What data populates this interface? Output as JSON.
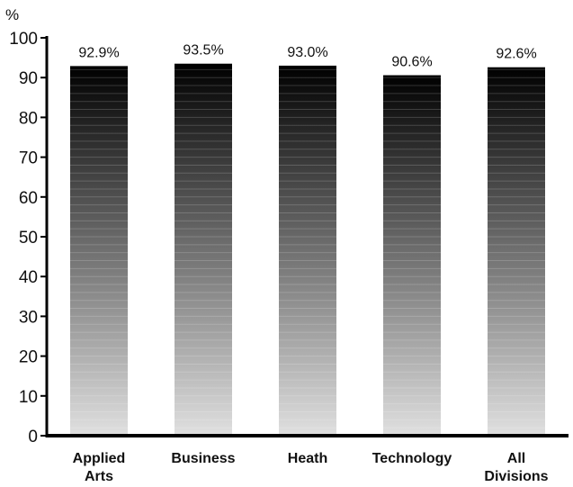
{
  "chart_data": {
    "type": "bar",
    "unit_label": "%",
    "categories": [
      [
        "Applied",
        "Arts"
      ],
      [
        "Business"
      ],
      [
        "Heath"
      ],
      [
        "Technology"
      ],
      [
        "All",
        "Divisions"
      ]
    ],
    "values": [
      92.9,
      93.5,
      93.0,
      90.6,
      92.6
    ],
    "data_labels": [
      "92.9%",
      "93.5%",
      "93.0%",
      "90.6%",
      "92.6%"
    ],
    "ylim": [
      0,
      100
    ],
    "yticks": [
      0,
      10,
      20,
      30,
      40,
      50,
      60,
      70,
      80,
      90,
      100
    ],
    "gradient_top_color": "#000000",
    "gradient_bottom_color": "#e0e0e0",
    "grid": false,
    "legend": "none"
  }
}
